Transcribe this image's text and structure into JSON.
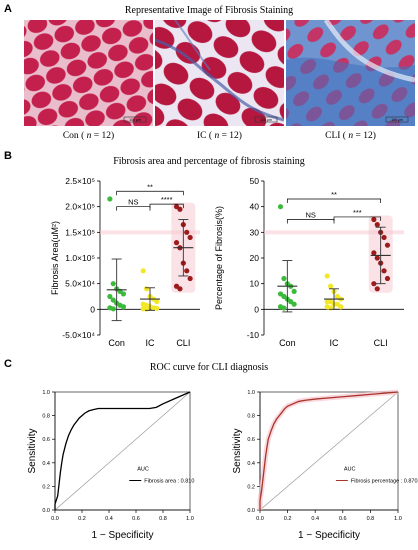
{
  "panels": {
    "A": {
      "label": "A",
      "title": "Representative Image of Fibrosis Staining",
      "images": [
        {
          "name": "Con",
          "n_label": "n",
          "n_value": "12",
          "scale": "100 μm",
          "tone": "muscle"
        },
        {
          "name": "IC",
          "n_label": "n",
          "n_value": "12",
          "scale": "100 μm",
          "tone": "mixed"
        },
        {
          "name": "CLI",
          "n_label": "n",
          "n_value": "12",
          "scale": "100 μm",
          "tone": "fibrotic"
        }
      ]
    },
    "B": {
      "label": "B",
      "title": "Fibrosis area and percentage  of fibrosis staining"
    },
    "C": {
      "label": "C",
      "title": "ROC curve for CLI diagnosis"
    }
  },
  "chart_data": [
    {
      "type": "scatter",
      "id": "fibrosis-area",
      "ylabel": "Fibrosis Area(uM²)",
      "categories": [
        "Con",
        "IC",
        "CLI"
      ],
      "ylim": [
        -50000,
        250000
      ],
      "yticks": [
        -50000,
        0,
        50000,
        100000,
        150000,
        200000,
        250000
      ],
      "ytick_labels": [
        "-5.0×10⁴",
        "0",
        "5.0×10⁴",
        "1.0×10⁵",
        "1.5×10⁵",
        "2.0×10⁵",
        "2.5×10⁵"
      ],
      "colors": [
        "#3cba3c",
        "#f2e829",
        "#9b1c1c"
      ],
      "band_color": "#f7c6cf",
      "series": [
        {
          "values": [
            215000,
            50000,
            40000,
            35000,
            30000,
            25000,
            18000,
            12000,
            8000,
            5000,
            3000,
            1000
          ],
          "mean": 38000,
          "sd": 60000
        },
        {
          "values": [
            75000,
            40000,
            25000,
            20000,
            15000,
            10000,
            8000,
            5000,
            3000,
            2000,
            1000,
            500
          ],
          "mean": 20000,
          "sd": 22000
        },
        {
          "values": [
            200000,
            195000,
            165000,
            150000,
            140000,
            130000,
            120000,
            90000,
            75000,
            60000,
            45000,
            40000
          ],
          "mean": 120000,
          "sd": 55000
        }
      ],
      "comparisons": [
        {
          "from": 0,
          "to": 1,
          "label": "NS",
          "y": 200000
        },
        {
          "from": 1,
          "to": 2,
          "label": "****",
          "y": 205000
        },
        {
          "from": 0,
          "to": 2,
          "label": "**",
          "y": 230000
        }
      ]
    },
    {
      "type": "scatter",
      "id": "fibrosis-percentage",
      "ylabel": "Percentage of Fibrosis(%)",
      "categories": [
        "Con",
        "IC",
        "CLI"
      ],
      "ylim": [
        -10,
        50
      ],
      "yticks": [
        -10,
        0,
        10,
        20,
        30,
        40,
        50
      ],
      "ytick_labels": [
        "-10",
        "0",
        "10",
        "20",
        "30",
        "40",
        "50"
      ],
      "colors": [
        "#3cba3c",
        "#f2e829",
        "#9b1c1c"
      ],
      "band_color": "#f7c6cf",
      "series": [
        {
          "values": [
            40,
            12,
            10,
            9,
            7,
            6,
            5,
            4,
            3,
            2,
            1,
            0.5
          ],
          "mean": 9,
          "sd": 10
        },
        {
          "values": [
            13,
            9,
            7,
            5,
            4,
            3,
            3,
            2,
            2,
            1,
            1,
            0.5
          ],
          "mean": 4,
          "sd": 4
        },
        {
          "values": [
            35,
            33,
            30,
            28,
            25,
            22,
            20,
            18,
            15,
            12,
            10,
            8
          ],
          "mean": 21,
          "sd": 11
        }
      ],
      "comparisons": [
        {
          "from": 0,
          "to": 1,
          "label": "NS",
          "y": 35
        },
        {
          "from": 1,
          "to": 2,
          "label": "***",
          "y": 36
        },
        {
          "from": 0,
          "to": 2,
          "label": "**",
          "y": 43
        }
      ]
    },
    {
      "type": "line",
      "id": "roc-area",
      "xlabel": "1 − Specificity",
      "ylabel": "Sensitivity",
      "xlim": [
        0,
        1
      ],
      "ylim": [
        0,
        1
      ],
      "ticks": [
        0.0,
        0.2,
        0.4,
        0.6,
        0.8,
        1.0
      ],
      "tick_labels": [
        "0.0",
        "0.2",
        "0.4",
        "0.6",
        "0.8",
        "1.0"
      ],
      "color": "#000000",
      "legend_title": "AUC",
      "legend_label": "Fibrosis area : 0.810",
      "x": [
        0,
        0.0,
        0.02,
        0.03,
        0.04,
        0.05,
        0.06,
        0.08,
        0.1,
        0.12,
        0.14,
        0.16,
        0.18,
        0.2,
        0.22,
        0.25,
        0.28,
        0.32,
        0.36,
        0.4,
        0.45,
        0.5,
        0.55,
        0.6,
        0.65,
        0.7,
        0.75,
        0.8,
        0.9,
        1.0
      ],
      "y": [
        0,
        0.05,
        0.12,
        0.22,
        0.32,
        0.4,
        0.47,
        0.56,
        0.63,
        0.68,
        0.72,
        0.75,
        0.78,
        0.8,
        0.82,
        0.84,
        0.85,
        0.86,
        0.86,
        0.86,
        0.86,
        0.86,
        0.86,
        0.86,
        0.86,
        0.86,
        0.87,
        0.9,
        0.95,
        1.0
      ]
    },
    {
      "type": "line",
      "id": "roc-percentage",
      "xlabel": "1 − Specificity",
      "ylabel": "Sensitivity",
      "xlim": [
        0,
        1
      ],
      "ylim": [
        0,
        1
      ],
      "ticks": [
        0.0,
        0.2,
        0.4,
        0.6,
        0.8,
        1.0
      ],
      "tick_labels": [
        "0.0",
        "0.2",
        "0.4",
        "0.6",
        "0.8",
        "1.0"
      ],
      "color": "#a8342a",
      "band_color": "#f7c6cf",
      "legend_title": "AUC",
      "legend_label": "Fibrosis percentage : 0.870",
      "x": [
        0,
        0.0,
        0.01,
        0.02,
        0.03,
        0.04,
        0.05,
        0.06,
        0.08,
        0.1,
        0.12,
        0.14,
        0.16,
        0.18,
        0.2,
        0.24,
        0.28,
        0.33,
        0.4,
        0.5,
        0.6,
        0.7,
        0.8,
        0.9,
        1.0
      ],
      "y": [
        0,
        0.08,
        0.15,
        0.25,
        0.35,
        0.45,
        0.53,
        0.6,
        0.67,
        0.73,
        0.77,
        0.8,
        0.83,
        0.86,
        0.88,
        0.9,
        0.92,
        0.93,
        0.94,
        0.95,
        0.96,
        0.97,
        0.98,
        0.99,
        1.0
      ]
    }
  ]
}
